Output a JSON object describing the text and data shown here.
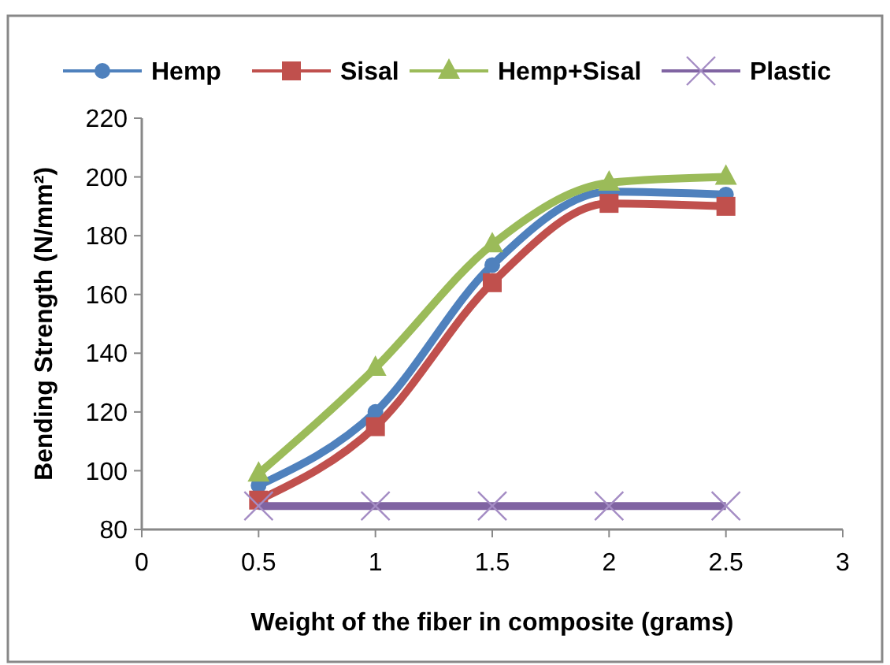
{
  "chart_data": {
    "type": "line",
    "xlabel": "Weight of the fiber in composite (grams)",
    "ylabel": "Bending Strength (N/mm²)",
    "x": [
      0.5,
      1,
      1.5,
      2,
      2.5
    ],
    "series": [
      {
        "name": "Hemp",
        "color": "#4f81bd",
        "marker": "circle",
        "values": [
          95,
          120,
          170,
          195,
          194
        ]
      },
      {
        "name": "Sisal",
        "color": "#c0504d",
        "marker": "square",
        "values": [
          90,
          115,
          164,
          191,
          190
        ]
      },
      {
        "name": "Hemp+Sisal",
        "color": "#9bbb59",
        "marker": "triangle",
        "values": [
          99,
          135,
          177,
          198,
          200
        ]
      },
      {
        "name": "Plastic",
        "color": "#8064a2",
        "marker": "cross",
        "values": [
          88,
          88,
          88,
          88,
          88
        ]
      }
    ],
    "xlim": [
      0,
      3
    ],
    "xticks": [
      0,
      0.5,
      1,
      1.5,
      2,
      2.5,
      3
    ],
    "ylim": [
      80,
      220
    ],
    "yticks": [
      80,
      100,
      120,
      140,
      160,
      180,
      200,
      220
    ],
    "grid": false,
    "legend": "top",
    "line_style": "solid"
  }
}
